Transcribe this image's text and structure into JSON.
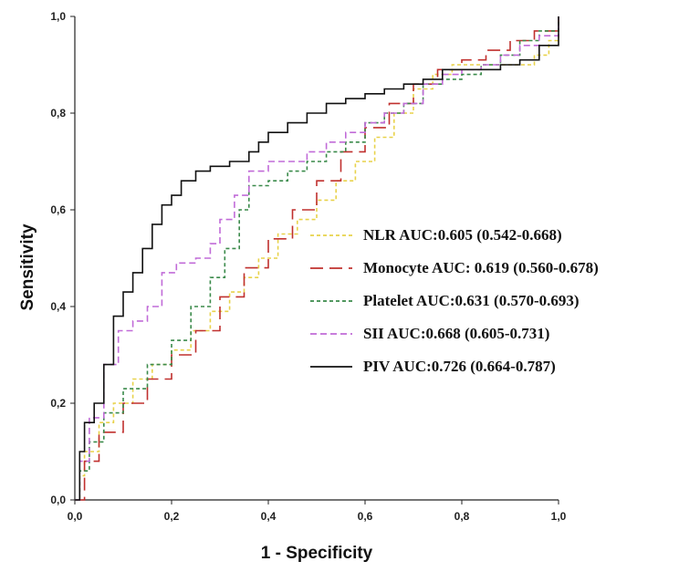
{
  "chart_data": {
    "type": "line",
    "title": "",
    "xlabel": "1 - Specificity",
    "ylabel": "Sensitivity",
    "xlim": [
      0,
      1
    ],
    "ylim": [
      0,
      1
    ],
    "x_ticks": [
      0,
      0.2,
      0.4,
      0.6,
      0.8,
      1.0
    ],
    "y_ticks": [
      0,
      0.2,
      0.4,
      0.6,
      0.8,
      1.0
    ],
    "x_tick_labels": [
      "0,0",
      "0,2",
      "0,4",
      "0,6",
      "0,8",
      "1,0"
    ],
    "y_tick_labels": [
      "0,0",
      "0,2",
      "0,4",
      "0,6",
      "0,8",
      "1,0"
    ],
    "grid": false,
    "legend_position": "center-right",
    "series": [
      {
        "name": "NLR",
        "label": "NLR AUC:0.605 (0.542-0.668)",
        "color": "#e8d24a",
        "dash": "short",
        "points": [
          [
            0,
            0
          ],
          [
            0.01,
            0.05
          ],
          [
            0.02,
            0.1
          ],
          [
            0.05,
            0.16
          ],
          [
            0.08,
            0.2
          ],
          [
            0.12,
            0.25
          ],
          [
            0.16,
            0.28
          ],
          [
            0.2,
            0.31
          ],
          [
            0.24,
            0.35
          ],
          [
            0.28,
            0.39
          ],
          [
            0.32,
            0.43
          ],
          [
            0.35,
            0.46
          ],
          [
            0.38,
            0.5
          ],
          [
            0.42,
            0.55
          ],
          [
            0.46,
            0.58
          ],
          [
            0.5,
            0.62
          ],
          [
            0.54,
            0.66
          ],
          [
            0.58,
            0.7
          ],
          [
            0.62,
            0.75
          ],
          [
            0.66,
            0.8
          ],
          [
            0.7,
            0.85
          ],
          [
            0.74,
            0.88
          ],
          [
            0.78,
            0.9
          ],
          [
            0.84,
            0.9
          ],
          [
            0.9,
            0.9
          ],
          [
            0.95,
            0.92
          ],
          [
            0.98,
            0.95
          ],
          [
            1,
            1
          ]
        ]
      },
      {
        "name": "Monocyte",
        "label": "Monocyte AUC: 0.619 (0.560-0.678)",
        "color": "#c0302e",
        "dash": "long",
        "points": [
          [
            0,
            0
          ],
          [
            0.02,
            0.08
          ],
          [
            0.05,
            0.14
          ],
          [
            0.1,
            0.2
          ],
          [
            0.15,
            0.25
          ],
          [
            0.2,
            0.3
          ],
          [
            0.25,
            0.35
          ],
          [
            0.3,
            0.42
          ],
          [
            0.35,
            0.48
          ],
          [
            0.4,
            0.54
          ],
          [
            0.45,
            0.6
          ],
          [
            0.5,
            0.66
          ],
          [
            0.55,
            0.72
          ],
          [
            0.6,
            0.77
          ],
          [
            0.65,
            0.82
          ],
          [
            0.7,
            0.86
          ],
          [
            0.75,
            0.89
          ],
          [
            0.8,
            0.91
          ],
          [
            0.85,
            0.93
          ],
          [
            0.9,
            0.95
          ],
          [
            0.95,
            0.97
          ],
          [
            1,
            1
          ]
        ]
      },
      {
        "name": "Platelet",
        "label": "Platelet AUC:0.631 (0.570-0.693)",
        "color": "#3a8a4a",
        "dash": "short",
        "points": [
          [
            0,
            0
          ],
          [
            0.01,
            0.06
          ],
          [
            0.03,
            0.12
          ],
          [
            0.06,
            0.18
          ],
          [
            0.1,
            0.23
          ],
          [
            0.15,
            0.28
          ],
          [
            0.2,
            0.33
          ],
          [
            0.24,
            0.4
          ],
          [
            0.28,
            0.46
          ],
          [
            0.31,
            0.52
          ],
          [
            0.34,
            0.6
          ],
          [
            0.36,
            0.65
          ],
          [
            0.4,
            0.66
          ],
          [
            0.44,
            0.68
          ],
          [
            0.48,
            0.7
          ],
          [
            0.52,
            0.72
          ],
          [
            0.56,
            0.74
          ],
          [
            0.6,
            0.78
          ],
          [
            0.64,
            0.8
          ],
          [
            0.68,
            0.82
          ],
          [
            0.72,
            0.86
          ],
          [
            0.76,
            0.87
          ],
          [
            0.8,
            0.88
          ],
          [
            0.84,
            0.9
          ],
          [
            0.88,
            0.92
          ],
          [
            0.92,
            0.95
          ],
          [
            0.96,
            0.97
          ],
          [
            1,
            1
          ]
        ]
      },
      {
        "name": "SII",
        "label": "SII AUC:0.668 (0.605-0.731)",
        "color": "#c16bd8",
        "dash": "medium",
        "points": [
          [
            0,
            0
          ],
          [
            0.01,
            0.08
          ],
          [
            0.03,
            0.17
          ],
          [
            0.06,
            0.28
          ],
          [
            0.09,
            0.35
          ],
          [
            0.12,
            0.37
          ],
          [
            0.15,
            0.4
          ],
          [
            0.18,
            0.47
          ],
          [
            0.21,
            0.49
          ],
          [
            0.25,
            0.5
          ],
          [
            0.28,
            0.53
          ],
          [
            0.3,
            0.58
          ],
          [
            0.33,
            0.63
          ],
          [
            0.36,
            0.68
          ],
          [
            0.4,
            0.7
          ],
          [
            0.44,
            0.7
          ],
          [
            0.48,
            0.72
          ],
          [
            0.52,
            0.74
          ],
          [
            0.56,
            0.76
          ],
          [
            0.6,
            0.78
          ],
          [
            0.64,
            0.8
          ],
          [
            0.68,
            0.82
          ],
          [
            0.72,
            0.86
          ],
          [
            0.76,
            0.88
          ],
          [
            0.8,
            0.89
          ],
          [
            0.84,
            0.9
          ],
          [
            0.88,
            0.92
          ],
          [
            0.92,
            0.94
          ],
          [
            0.96,
            0.96
          ],
          [
            1,
            1
          ]
        ]
      },
      {
        "name": "PIV",
        "label": "PIV AUC:0.726 (0.664-0.787)",
        "color": "#111111",
        "dash": "solid",
        "points": [
          [
            0,
            0
          ],
          [
            0.01,
            0.1
          ],
          [
            0.02,
            0.16
          ],
          [
            0.04,
            0.2
          ],
          [
            0.06,
            0.28
          ],
          [
            0.08,
            0.38
          ],
          [
            0.1,
            0.43
          ],
          [
            0.12,
            0.47
          ],
          [
            0.14,
            0.52
          ],
          [
            0.16,
            0.57
          ],
          [
            0.18,
            0.61
          ],
          [
            0.2,
            0.63
          ],
          [
            0.22,
            0.66
          ],
          [
            0.25,
            0.68
          ],
          [
            0.28,
            0.69
          ],
          [
            0.32,
            0.7
          ],
          [
            0.36,
            0.72
          ],
          [
            0.38,
            0.74
          ],
          [
            0.4,
            0.76
          ],
          [
            0.44,
            0.78
          ],
          [
            0.48,
            0.8
          ],
          [
            0.52,
            0.82
          ],
          [
            0.56,
            0.83
          ],
          [
            0.6,
            0.84
          ],
          [
            0.64,
            0.85
          ],
          [
            0.68,
            0.86
          ],
          [
            0.72,
            0.87
          ],
          [
            0.76,
            0.89
          ],
          [
            0.8,
            0.89
          ],
          [
            0.84,
            0.89
          ],
          [
            0.88,
            0.9
          ],
          [
            0.92,
            0.91
          ],
          [
            0.96,
            0.94
          ],
          [
            1,
            1
          ]
        ]
      }
    ]
  }
}
